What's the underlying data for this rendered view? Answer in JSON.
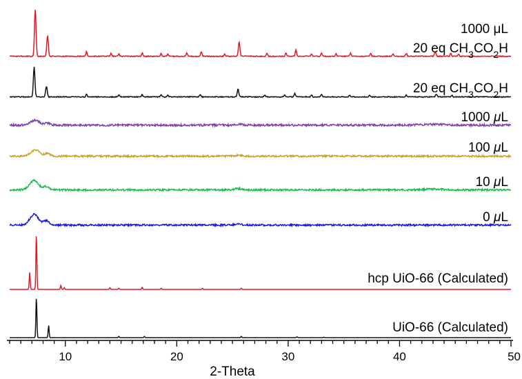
{
  "chart_data": {
    "type": "line",
    "xlabel": "2-Theta",
    "xlim": [
      5,
      50
    ],
    "x_ticks": [
      10,
      20,
      30,
      40,
      50
    ],
    "y_axis_shown": false,
    "grid": false,
    "legend": "none",
    "series": [
      {
        "key": "acetic_1000",
        "label_line1": "1000 μL",
        "label_line2": "20 eq CH3CO2H",
        "color": "#e8141f",
        "baseline": 0.02,
        "noise": 0.6,
        "peaks": [
          [
            7.3,
            1.0,
            0.1
          ],
          [
            8.4,
            0.44,
            0.1
          ],
          [
            11.9,
            0.1,
            0.08
          ],
          [
            14.1,
            0.06,
            0.08
          ],
          [
            14.8,
            0.05,
            0.08
          ],
          [
            16.9,
            0.07,
            0.08
          ],
          [
            18.6,
            0.06,
            0.08
          ],
          [
            19.2,
            0.05,
            0.08
          ],
          [
            20.9,
            0.07,
            0.08
          ],
          [
            22.2,
            0.1,
            0.08
          ],
          [
            24.3,
            0.05,
            0.08
          ],
          [
            25.6,
            0.3,
            0.1
          ],
          [
            28.1,
            0.06,
            0.08
          ],
          [
            29.8,
            0.07,
            0.08
          ],
          [
            30.7,
            0.13,
            0.09
          ],
          [
            32.1,
            0.05,
            0.08
          ],
          [
            33.0,
            0.07,
            0.08
          ],
          [
            34.3,
            0.05,
            0.08
          ],
          [
            35.6,
            0.07,
            0.08
          ],
          [
            37.4,
            0.06,
            0.08
          ],
          [
            39.4,
            0.05,
            0.08
          ],
          [
            40.6,
            0.06,
            0.08
          ],
          [
            43.2,
            0.1,
            0.1
          ],
          [
            44.6,
            0.07,
            0.08
          ],
          [
            45.3,
            0.05,
            0.08
          ]
        ]
      },
      {
        "key": "acetic",
        "label": "20 eq CH3CO2H",
        "color": "#111111",
        "baseline": 0.02,
        "noise": 0.6,
        "peaks": [
          [
            7.2,
            0.62,
            0.1
          ],
          [
            8.3,
            0.22,
            0.1
          ],
          [
            11.9,
            0.06,
            0.08
          ],
          [
            14.8,
            0.04,
            0.08
          ],
          [
            16.9,
            0.05,
            0.08
          ],
          [
            18.6,
            0.04,
            0.08
          ],
          [
            19.2,
            0.04,
            0.08
          ],
          [
            22.1,
            0.05,
            0.08
          ],
          [
            25.5,
            0.16,
            0.1
          ],
          [
            27.9,
            0.04,
            0.08
          ],
          [
            29.7,
            0.04,
            0.08
          ],
          [
            30.6,
            0.07,
            0.09
          ],
          [
            32.1,
            0.04,
            0.08
          ],
          [
            33.0,
            0.05,
            0.08
          ],
          [
            35.5,
            0.04,
            0.08
          ],
          [
            37.3,
            0.04,
            0.08
          ],
          [
            40.6,
            0.04,
            0.08
          ],
          [
            43.3,
            0.05,
            0.1
          ],
          [
            44.7,
            0.04,
            0.08
          ]
        ]
      },
      {
        "key": "water_1000",
        "label": "1000 μL",
        "color": "#7b3fb0",
        "baseline": 0.02,
        "noise": 1.5,
        "peaks": [
          [
            7.3,
            0.1,
            0.55
          ],
          [
            8.4,
            0.04,
            0.35
          ],
          [
            25.6,
            0.02,
            0.4
          ],
          [
            43.0,
            0.02,
            1.2
          ]
        ]
      },
      {
        "key": "water_100",
        "label": "100 μL",
        "color": "#c9a227",
        "baseline": 0.02,
        "noise": 1.3,
        "peaks": [
          [
            7.3,
            0.13,
            0.55
          ],
          [
            8.4,
            0.05,
            0.35
          ],
          [
            25.6,
            0.02,
            0.4
          ]
        ]
      },
      {
        "key": "water_10",
        "label": "10 μL",
        "color": "#1bbb4b",
        "baseline": 0.02,
        "noise": 1.3,
        "peaks": [
          [
            7.2,
            0.2,
            0.55
          ],
          [
            8.3,
            0.07,
            0.35
          ],
          [
            25.5,
            0.03,
            0.4
          ],
          [
            43.0,
            0.015,
            1.2
          ]
        ]
      },
      {
        "key": "water_0",
        "label": "0 μL",
        "color": "#1818e6",
        "baseline": 0.02,
        "noise": 1.3,
        "peaks": [
          [
            7.2,
            0.22,
            0.55
          ],
          [
            8.3,
            0.09,
            0.35
          ],
          [
            25.5,
            0.02,
            0.4
          ]
        ]
      },
      {
        "key": "hcp_calc",
        "label": "hcp UiO-66 (Calculated)",
        "color": "#e8141f",
        "baseline": 0.0,
        "noise": 0,
        "peaks": [
          [
            6.8,
            0.3,
            0.06
          ],
          [
            7.4,
            1.0,
            0.06
          ],
          [
            9.6,
            0.07,
            0.06
          ],
          [
            9.9,
            0.03,
            0.06
          ],
          [
            14.0,
            0.03,
            0.06
          ],
          [
            14.8,
            0.02,
            0.06
          ],
          [
            16.9,
            0.04,
            0.06
          ],
          [
            18.6,
            0.02,
            0.06
          ],
          [
            22.3,
            0.02,
            0.06
          ],
          [
            25.8,
            0.02,
            0.06
          ]
        ]
      },
      {
        "key": "uio66_calc",
        "label": "UiO-66 (Calculated)",
        "color": "#111111",
        "baseline": 0.0,
        "noise": 0,
        "peaks": [
          [
            7.4,
            1.0,
            0.06
          ],
          [
            8.5,
            0.3,
            0.06
          ],
          [
            14.8,
            0.03,
            0.06
          ],
          [
            17.1,
            0.03,
            0.06
          ],
          [
            25.8,
            0.03,
            0.06
          ],
          [
            30.8,
            0.02,
            0.06
          ],
          [
            33.2,
            0.01,
            0.06
          ]
        ]
      }
    ]
  }
}
